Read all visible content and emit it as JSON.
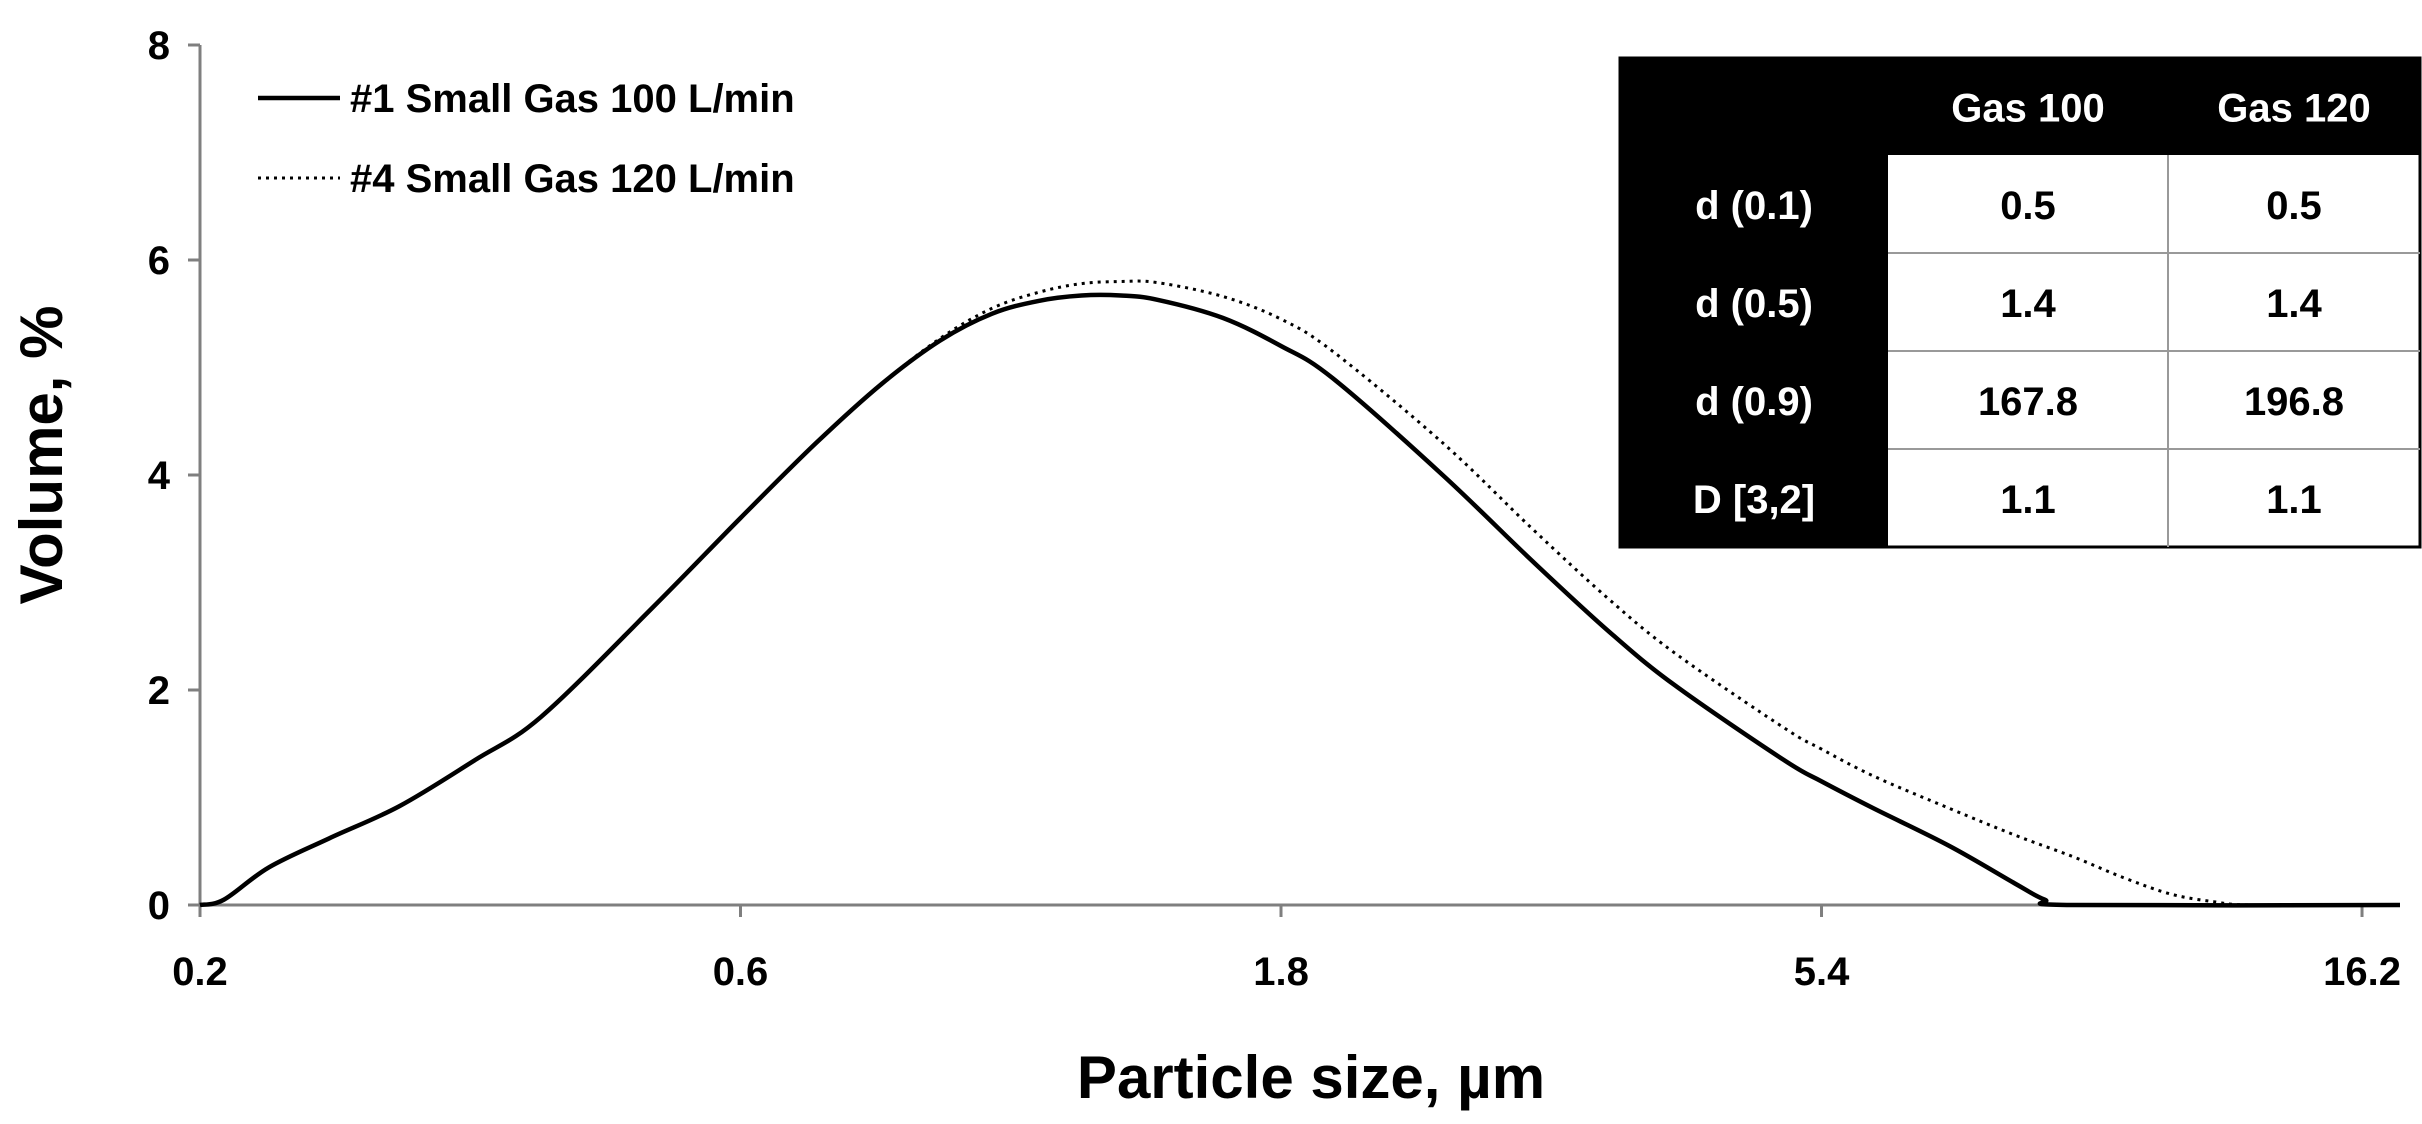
{
  "chart_data": {
    "type": "line",
    "title": "",
    "xlabel": "Particle size, µm",
    "ylabel": "Volume, %",
    "x_scale": "log",
    "xlim": [
      0.2,
      17.5
    ],
    "ylim": [
      0,
      8
    ],
    "x_ticks": [
      0.2,
      0.6,
      1.8,
      5.4,
      16.2
    ],
    "x_tick_labels": [
      "0.2",
      "0.6",
      "1.8",
      "5.4",
      "16.2"
    ],
    "y_ticks": [
      0,
      2,
      4,
      6,
      8
    ],
    "y_tick_labels": [
      "0",
      "2",
      "4",
      "6",
      "8"
    ],
    "grid": false,
    "legend_position": "top-left",
    "series": [
      {
        "name": "#1 Small Gas 100 L/min",
        "style": "solid",
        "color": "#000000",
        "points": [
          [
            0.2,
            0.0
          ],
          [
            0.21,
            0.05
          ],
          [
            0.23,
            0.35
          ],
          [
            0.26,
            0.62
          ],
          [
            0.3,
            0.92
          ],
          [
            0.35,
            1.35
          ],
          [
            0.4,
            1.75
          ],
          [
            0.5,
            2.75
          ],
          [
            0.6,
            3.6
          ],
          [
            0.7,
            4.3
          ],
          [
            0.8,
            4.85
          ],
          [
            0.9,
            5.25
          ],
          [
            1.0,
            5.5
          ],
          [
            1.1,
            5.62
          ],
          [
            1.2,
            5.67
          ],
          [
            1.3,
            5.67
          ],
          [
            1.4,
            5.63
          ],
          [
            1.6,
            5.46
          ],
          [
            1.8,
            5.2
          ],
          [
            2.0,
            4.9
          ],
          [
            2.5,
            4.0
          ],
          [
            3.0,
            3.2
          ],
          [
            3.5,
            2.55
          ],
          [
            4.0,
            2.05
          ],
          [
            5.0,
            1.35
          ],
          [
            5.4,
            1.15
          ],
          [
            6.0,
            0.9
          ],
          [
            7.0,
            0.55
          ],
          [
            8.0,
            0.2
          ],
          [
            8.5,
            0.05
          ],
          [
            9.0,
            0.0
          ],
          [
            17.5,
            0.0
          ]
        ]
      },
      {
        "name": "#4 Small Gas 120 L/min",
        "style": "dotted",
        "color": "#000000",
        "points": [
          [
            0.2,
            0.0
          ],
          [
            0.21,
            0.05
          ],
          [
            0.23,
            0.35
          ],
          [
            0.26,
            0.62
          ],
          [
            0.3,
            0.92
          ],
          [
            0.35,
            1.35
          ],
          [
            0.4,
            1.75
          ],
          [
            0.5,
            2.75
          ],
          [
            0.6,
            3.6
          ],
          [
            0.7,
            4.3
          ],
          [
            0.8,
            4.85
          ],
          [
            0.9,
            5.27
          ],
          [
            1.0,
            5.55
          ],
          [
            1.1,
            5.7
          ],
          [
            1.2,
            5.78
          ],
          [
            1.3,
            5.8
          ],
          [
            1.4,
            5.79
          ],
          [
            1.6,
            5.66
          ],
          [
            1.8,
            5.45
          ],
          [
            2.0,
            5.15
          ],
          [
            2.5,
            4.3
          ],
          [
            3.0,
            3.5
          ],
          [
            3.5,
            2.85
          ],
          [
            4.0,
            2.35
          ],
          [
            5.0,
            1.65
          ],
          [
            5.4,
            1.45
          ],
          [
            6.0,
            1.2
          ],
          [
            7.0,
            0.9
          ],
          [
            8.0,
            0.65
          ],
          [
            9.0,
            0.45
          ],
          [
            10.0,
            0.25
          ],
          [
            11.0,
            0.1
          ],
          [
            12.0,
            0.03
          ],
          [
            13.0,
            0.0
          ],
          [
            17.5,
            0.0
          ]
        ]
      }
    ],
    "table": {
      "columns": [
        "",
        "Gas 100",
        "Gas 120"
      ],
      "rows": [
        [
          "d (0.1)",
          "0.5",
          "0.5"
        ],
        [
          "d (0.5)",
          "1.4",
          "1.4"
        ],
        [
          "d (0.9)",
          "167.8",
          "196.8"
        ],
        [
          "D [3,2]",
          "1.1",
          "1.1"
        ]
      ]
    }
  }
}
